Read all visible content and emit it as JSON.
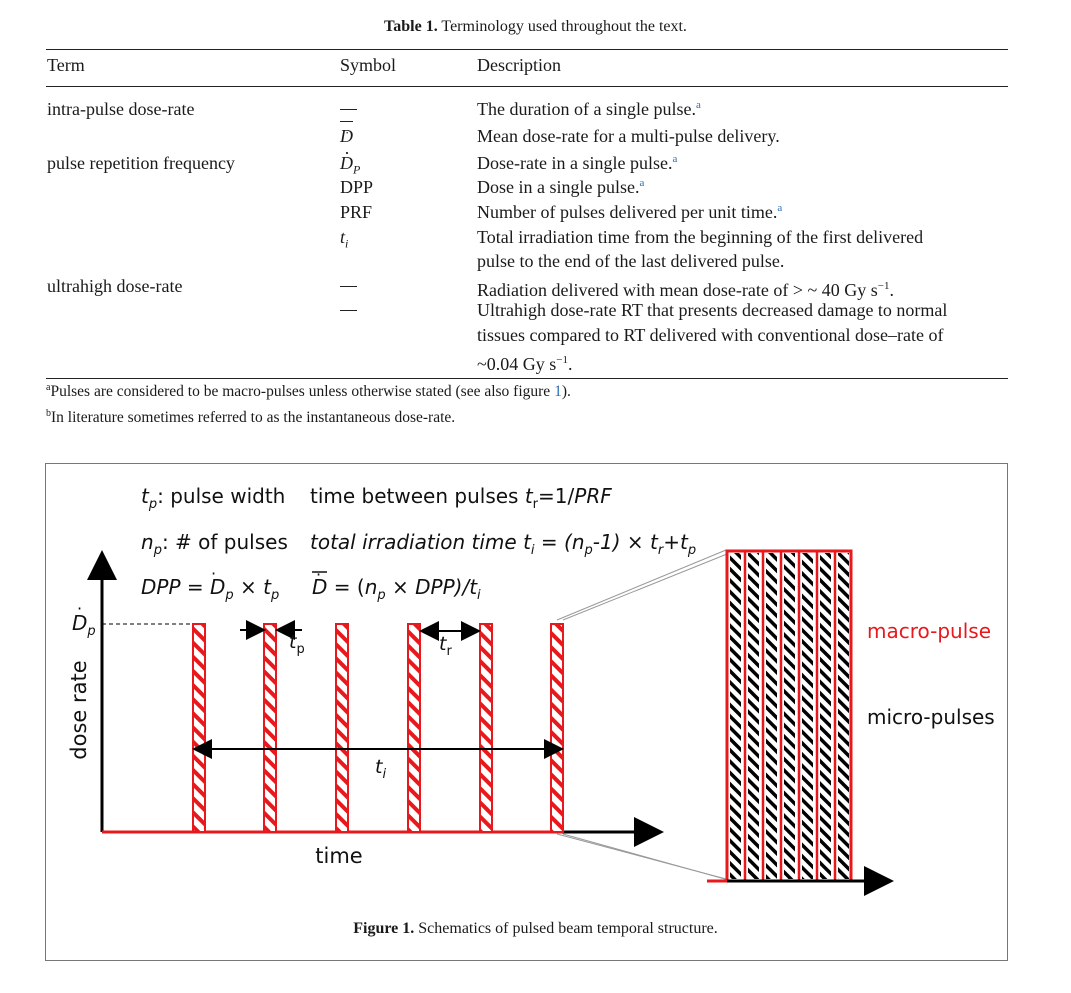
{
  "table": {
    "label": "Table 1.",
    "caption": "Terminology used throughout the text.",
    "headers": {
      "term": "Term",
      "symbol": "Symbol",
      "description": "Description"
    },
    "rows": [
      {
        "term": "intra-pulse dose-rate",
        "symbol": "—",
        "description": "The duration of a single pulse.",
        "fn": "a"
      },
      {
        "term": "",
        "symbol": "D̄̇",
        "description": "Mean dose-rate for a multi-pulse delivery.",
        "fn": ""
      },
      {
        "term": "pulse repetition frequency",
        "symbol": "Ḋ",
        "symbol_sub": "P",
        "description": "Dose-rate in a single pulse.",
        "fn": "a"
      },
      {
        "term": "",
        "symbol": "DPP",
        "description": "Dose in a single pulse.",
        "fn": "a"
      },
      {
        "term": "",
        "symbol": "PRF",
        "description": "Number of pulses delivered per unit time.",
        "fn": "a"
      },
      {
        "term": "",
        "symbol": "t",
        "symbol_sub": "i",
        "description_lines": [
          "Total irradiation time from the beginning of the first delivered",
          "pulse to the end of the last delivered pulse."
        ]
      },
      {
        "term": "ultrahigh dose-rate",
        "symbol": "—",
        "description": "Radiation delivered with mean dose-rate of > ~ 40 Gy s",
        "sup": "−1",
        "tail": "."
      },
      {
        "term": "",
        "symbol": "—",
        "description_lines": [
          "Ultrahigh dose-rate RT that presents decreased damage to normal",
          "tissues compared to RT delivered with conventional dose–rate of"
        ],
        "last_line": "~0.04 Gy s",
        "sup": "−1",
        "tail": "."
      }
    ],
    "footnotes": [
      {
        "mark": "a",
        "text": "Pulses are considered to be macro-pulses unless otherwise stated (see also figure ",
        "ref": "1",
        "tail": ")."
      },
      {
        "mark": "b",
        "text": "In literature sometimes referred to as the instantaneous dose-rate."
      }
    ]
  },
  "figure": {
    "label": "Figure 1.",
    "caption": "Schematics of pulsed beam temporal structure.",
    "legend": {
      "tp_line": ": pulse width",
      "tr_line": "time between pulses ",
      "tr_rhs": " =1/PRF",
      "np_line": ": # of pulses",
      "ti_line": "total irradiation time ",
      "ti_rhs_a": " = (n",
      "ti_rhs_b": "-1) × t",
      "ti_rhs_c": "+t",
      "dpp_line": "DPP = ",
      "dpp_rhs": " × t",
      "dbar_rhs": " = (n",
      "dbar_rhs_b": " × DPP)/t"
    },
    "axis": {
      "y_label": "dose rate",
      "x_label": "time",
      "y_tick": "Ḋ"
    },
    "annotations": {
      "tp": "t",
      "tr": "t",
      "ti": "t",
      "macro": "macro-pulse",
      "micro": "micro-pulses"
    },
    "colors": {
      "pulse": "#e8191c",
      "axis": "#000000",
      "macro_label": "#e8191c"
    }
  }
}
